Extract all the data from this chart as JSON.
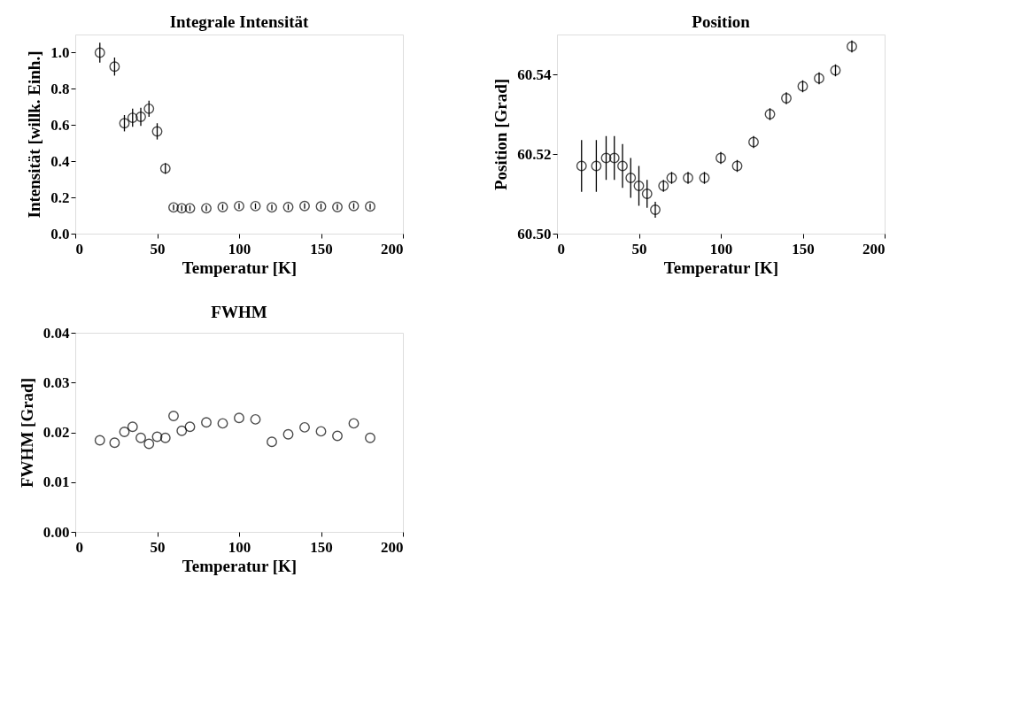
{
  "chart_data": [
    {
      "type": "scatter",
      "title": "Integrale Intensität",
      "xlabel": "Temperatur [K]",
      "ylabel": "Intensität [willk. Einh.]",
      "marker": "circle",
      "color": "#000000",
      "x": [
        15,
        24,
        30,
        35,
        40,
        45,
        50,
        55,
        60,
        65,
        70,
        80,
        90,
        100,
        110,
        120,
        130,
        140,
        150,
        160,
        170,
        180
      ],
      "values": [
        1.0,
        0.923,
        0.61,
        0.64,
        0.645,
        0.69,
        0.565,
        0.36,
        0.145,
        0.14,
        0.14,
        0.14,
        0.147,
        0.152,
        0.152,
        0.145,
        0.147,
        0.153,
        0.15,
        0.147,
        0.153,
        0.15
      ],
      "errors": [
        0.055,
        0.05,
        0.045,
        0.05,
        0.05,
        0.045,
        0.045,
        0.03,
        0.015,
        0.015,
        0.015,
        0.015,
        0.015,
        0.015,
        0.015,
        0.015,
        0.015,
        0.015,
        0.015,
        0.015,
        0.015,
        0.015
      ],
      "xlim": [
        0,
        200
      ],
      "xticks": [
        0,
        50,
        100,
        150,
        200
      ],
      "ylim": [
        0,
        1.1
      ],
      "yticks": [
        {
          "value": 0,
          "label": "0.0"
        },
        {
          "value": 0.2,
          "label": "0.2"
        },
        {
          "value": 0.4,
          "label": "0.4"
        },
        {
          "value": 0.6,
          "label": "0.6"
        },
        {
          "value": 0.8,
          "label": "0.8"
        },
        {
          "value": 1,
          "label": "1.0"
        }
      ]
    },
    {
      "type": "scatter",
      "title": "Position",
      "xlabel": "Temperatur [K]",
      "ylabel": "Position [Grad]",
      "marker": "circle",
      "color": "#000000",
      "x": [
        15,
        24,
        30,
        35,
        40,
        45,
        50,
        55,
        60,
        65,
        70,
        80,
        90,
        100,
        110,
        120,
        130,
        140,
        150,
        160,
        170,
        180
      ],
      "values": [
        60.517,
        60.517,
        60.519,
        60.519,
        60.517,
        60.514,
        60.512,
        60.51,
        60.506,
        60.512,
        60.514,
        60.514,
        60.514,
        60.519,
        60.517,
        60.523,
        60.53,
        60.534,
        60.537,
        60.539,
        60.541,
        60.547
      ],
      "errors": [
        0.0065,
        0.0065,
        0.0055,
        0.0055,
        0.0055,
        0.005,
        0.005,
        0.0035,
        0.002,
        0.0015,
        0.0015,
        0.0015,
        0.0015,
        0.0015,
        0.0015,
        0.0015,
        0.0015,
        0.0015,
        0.0015,
        0.0015,
        0.0015,
        0.0015
      ],
      "xlim": [
        0,
        200
      ],
      "xticks": [
        0,
        50,
        100,
        150,
        200
      ],
      "ylim": [
        60.5,
        60.55
      ],
      "yticks": [
        {
          "value": 60.5,
          "label": "60.50"
        },
        {
          "value": 60.52,
          "label": "60.52"
        },
        {
          "value": 60.54,
          "label": "60.54"
        }
      ]
    },
    {
      "type": "scatter",
      "title": "FWHM",
      "xlabel": "Temperatur [K]",
      "ylabel": "FWHM [Grad]",
      "marker": "circle",
      "color": "#000000",
      "x": [
        15,
        24,
        30,
        35,
        40,
        45,
        50,
        55,
        60,
        65,
        70,
        80,
        90,
        100,
        110,
        120,
        130,
        140,
        150,
        160,
        170,
        180
      ],
      "values": [
        0.0184,
        0.0179,
        0.0201,
        0.0211,
        0.0189,
        0.0177,
        0.0191,
        0.0189,
        0.0233,
        0.0203,
        0.0211,
        0.022,
        0.0218,
        0.0229,
        0.0226,
        0.0181,
        0.0196,
        0.021,
        0.0202,
        0.0193,
        0.0218,
        0.0189
      ],
      "xlim": [
        0,
        200
      ],
      "xticks": [
        0,
        50,
        100,
        150,
        200
      ],
      "ylim": [
        0,
        0.04
      ],
      "yticks": [
        {
          "value": 0,
          "label": "0.00"
        },
        {
          "value": 0.01,
          "label": "0.01"
        },
        {
          "value": 0.02,
          "label": "0.02"
        },
        {
          "value": 0.03,
          "label": "0.03"
        },
        {
          "value": 0.04,
          "label": "0.04"
        }
      ]
    }
  ]
}
